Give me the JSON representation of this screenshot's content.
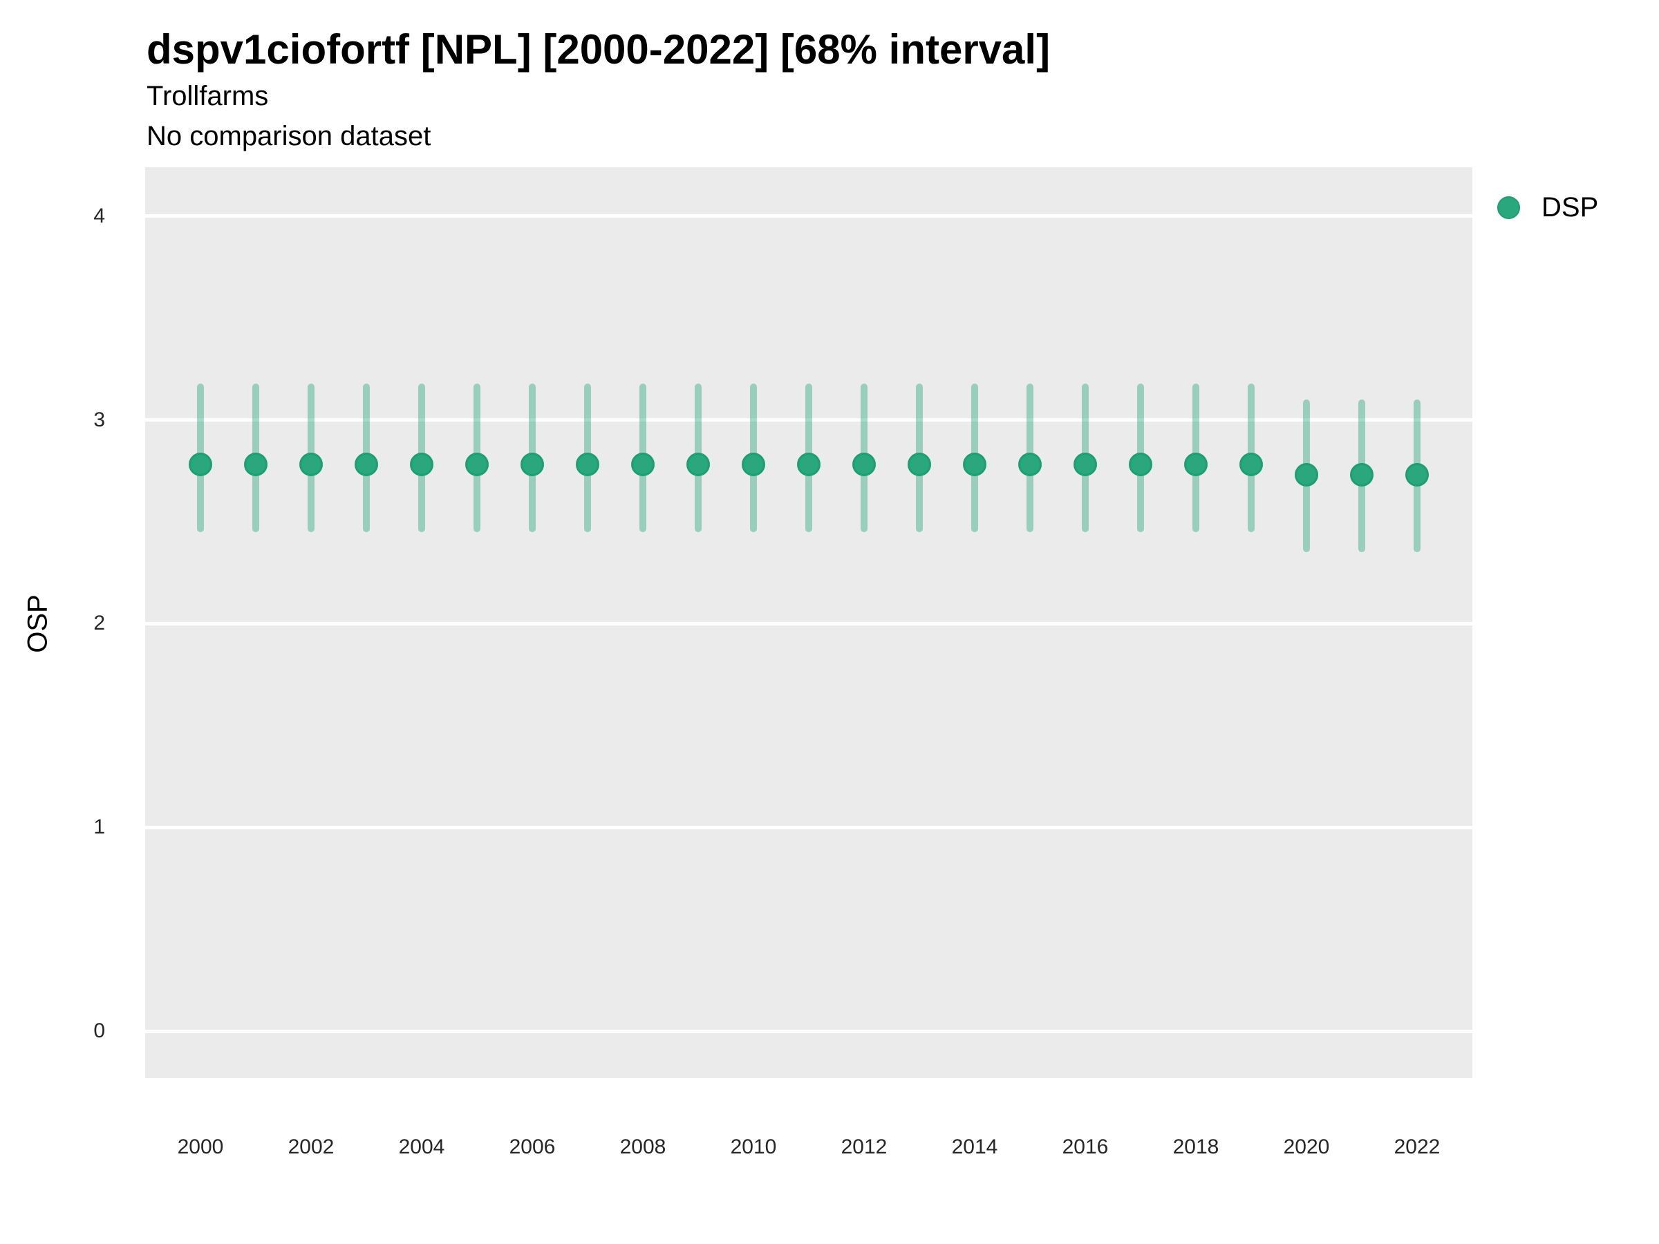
{
  "header": {
    "title": "dspv1ciofortf [NPL] [2000-2022] [68% interval]",
    "subtitle": "Trollfarms",
    "note": "No comparison dataset"
  },
  "legend": {
    "label": "DSP"
  },
  "axes": {
    "y_label": "OSP",
    "y_tick_labels": [
      "0",
      "1",
      "2",
      "3",
      "4"
    ],
    "x_tick_labels": [
      "2000",
      "2002",
      "2004",
      "2006",
      "2008",
      "2010",
      "2012",
      "2014",
      "2016",
      "2018",
      "2020",
      "2022"
    ]
  },
  "colors": {
    "point_fill": "#2aa77c",
    "point_edge": "#1e9e72",
    "interval_line": "rgba(42,167,124,0.42)",
    "panel_background": "#ebebeb",
    "gridline": "#ffffff",
    "text": "#000000",
    "tick_text": "#262626"
  },
  "chart_data": {
    "type": "pointrange",
    "title": "dspv1ciofortf [NPL] [2000-2022] [68% interval]",
    "subtitle": [
      "Trollfarms",
      "No comparison dataset"
    ],
    "xlabel": "",
    "ylabel": "OSP",
    "ylim": [
      -0.23,
      4.24
    ],
    "xlim": [
      1999,
      2023
    ],
    "y_ticks": [
      0,
      1,
      2,
      3,
      4
    ],
    "x_ticks": [
      2000,
      2002,
      2004,
      2006,
      2008,
      2010,
      2012,
      2014,
      2016,
      2018,
      2020,
      2022
    ],
    "grid": "horizontal-major-only",
    "legend_position": "right-top",
    "interval_label": "68% interval",
    "series": [
      {
        "name": "DSP",
        "x": [
          2000,
          2001,
          2002,
          2003,
          2004,
          2005,
          2006,
          2007,
          2008,
          2009,
          2010,
          2011,
          2012,
          2013,
          2014,
          2015,
          2016,
          2017,
          2018,
          2019,
          2020,
          2021,
          2022
        ],
        "mid": [
          2.78,
          2.78,
          2.78,
          2.78,
          2.78,
          2.78,
          2.78,
          2.78,
          2.78,
          2.78,
          2.78,
          2.78,
          2.78,
          2.78,
          2.78,
          2.78,
          2.78,
          2.78,
          2.78,
          2.78,
          2.73,
          2.73,
          2.73
        ],
        "lo": [
          2.45,
          2.45,
          2.45,
          2.45,
          2.45,
          2.45,
          2.45,
          2.45,
          2.45,
          2.45,
          2.45,
          2.45,
          2.45,
          2.45,
          2.45,
          2.45,
          2.45,
          2.45,
          2.45,
          2.45,
          2.35,
          2.35,
          2.35
        ],
        "hi": [
          3.18,
          3.18,
          3.18,
          3.18,
          3.18,
          3.18,
          3.18,
          3.18,
          3.18,
          3.18,
          3.18,
          3.18,
          3.18,
          3.18,
          3.18,
          3.18,
          3.18,
          3.18,
          3.18,
          3.18,
          3.1,
          3.1,
          3.1
        ]
      }
    ]
  }
}
